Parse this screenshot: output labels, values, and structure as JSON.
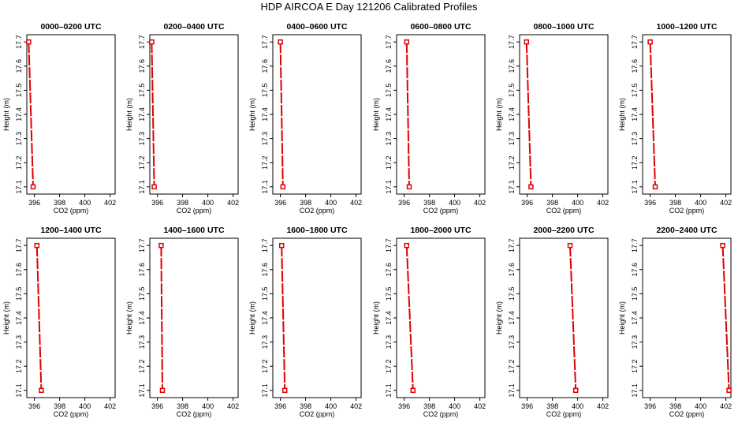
{
  "title": "HDP AIRCOA E  Day 121206  Calibrated Profiles",
  "colors": {
    "profile_line": "#e00000",
    "frame": "#000000"
  },
  "chart_data": [
    {
      "type": "line",
      "title": "0000–0200 UTC",
      "xlabel": "CO2 (ppm)",
      "ylabel": "Height (m)",
      "xlim": [
        395.4,
        402.4
      ],
      "ylim": [
        17.07,
        17.73
      ],
      "xticks": [
        "396",
        "398",
        "400",
        "402"
      ],
      "yticks": [
        "17.1",
        "17.2",
        "17.3",
        "17.4",
        "17.5",
        "17.6",
        "17.7"
      ],
      "grid": false,
      "x": [
        395.55,
        395.9
      ],
      "y": [
        17.7,
        17.1
      ]
    },
    {
      "type": "line",
      "title": "0200–0400 UTC",
      "xlabel": "CO2 (ppm)",
      "ylabel": "Height (m)",
      "xlim": [
        395.4,
        402.4
      ],
      "ylim": [
        17.07,
        17.73
      ],
      "xticks": [
        "396",
        "398",
        "400",
        "402"
      ],
      "yticks": [
        "17.1",
        "17.2",
        "17.3",
        "17.4",
        "17.5",
        "17.6",
        "17.7"
      ],
      "grid": false,
      "x": [
        395.55,
        395.75
      ],
      "y": [
        17.7,
        17.1
      ]
    },
    {
      "type": "line",
      "title": "0400–0600 UTC",
      "xlabel": "CO2 (ppm)",
      "ylabel": "Height (m)",
      "xlim": [
        395.4,
        402.4
      ],
      "ylim": [
        17.07,
        17.73
      ],
      "xticks": [
        "396",
        "398",
        "400",
        "402"
      ],
      "yticks": [
        "17.1",
        "17.2",
        "17.3",
        "17.4",
        "17.5",
        "17.6",
        "17.7"
      ],
      "grid": false,
      "x": [
        396.0,
        396.2
      ],
      "y": [
        17.7,
        17.1
      ]
    },
    {
      "type": "line",
      "title": "0600–0800 UTC",
      "xlabel": "CO2 (ppm)",
      "ylabel": "Height (m)",
      "xlim": [
        395.4,
        402.4
      ],
      "ylim": [
        17.07,
        17.73
      ],
      "xticks": [
        "396",
        "398",
        "400",
        "402"
      ],
      "yticks": [
        "17.1",
        "17.2",
        "17.3",
        "17.4",
        "17.5",
        "17.6",
        "17.7"
      ],
      "grid": false,
      "x": [
        396.2,
        396.4
      ],
      "y": [
        17.7,
        17.1
      ]
    },
    {
      "type": "line",
      "title": "0800–1000 UTC",
      "xlabel": "CO2 (ppm)",
      "ylabel": "Height (m)",
      "xlim": [
        395.4,
        402.4
      ],
      "ylim": [
        17.07,
        17.73
      ],
      "xticks": [
        "396",
        "398",
        "400",
        "402"
      ],
      "yticks": [
        "17.1",
        "17.2",
        "17.3",
        "17.4",
        "17.5",
        "17.6",
        "17.7"
      ],
      "grid": false,
      "x": [
        395.95,
        396.3
      ],
      "y": [
        17.7,
        17.1
      ]
    },
    {
      "type": "line",
      "title": "1000–1200 UTC",
      "xlabel": "CO2 (ppm)",
      "ylabel": "Height (m)",
      "xlim": [
        395.4,
        402.4
      ],
      "ylim": [
        17.07,
        17.73
      ],
      "xticks": [
        "396",
        "398",
        "400",
        "402"
      ],
      "yticks": [
        "17.1",
        "17.2",
        "17.3",
        "17.4",
        "17.5",
        "17.6",
        "17.7"
      ],
      "grid": false,
      "x": [
        396.0,
        396.4
      ],
      "y": [
        17.7,
        17.1
      ]
    },
    {
      "type": "line",
      "title": "1200–1400 UTC",
      "xlabel": "CO2 (ppm)",
      "ylabel": "Height (m)",
      "xlim": [
        395.4,
        402.4
      ],
      "ylim": [
        17.07,
        17.73
      ],
      "xticks": [
        "396",
        "398",
        "400",
        "402"
      ],
      "yticks": [
        "17.1",
        "17.2",
        "17.3",
        "17.4",
        "17.5",
        "17.6",
        "17.7"
      ],
      "grid": false,
      "x": [
        396.2,
        396.55
      ],
      "y": [
        17.7,
        17.1
      ]
    },
    {
      "type": "line",
      "title": "1400–1600 UTC",
      "xlabel": "CO2 (ppm)",
      "ylabel": "Height (m)",
      "xlim": [
        395.4,
        402.4
      ],
      "ylim": [
        17.07,
        17.73
      ],
      "xticks": [
        "396",
        "398",
        "400",
        "402"
      ],
      "yticks": [
        "17.1",
        "17.2",
        "17.3",
        "17.4",
        "17.5",
        "17.6",
        "17.7"
      ],
      "grid": false,
      "x": [
        396.3,
        396.4
      ],
      "y": [
        17.7,
        17.1
      ]
    },
    {
      "type": "line",
      "title": "1600–1800 UTC",
      "xlabel": "CO2 (ppm)",
      "ylabel": "Height (m)",
      "xlim": [
        395.4,
        402.4
      ],
      "ylim": [
        17.07,
        17.73
      ],
      "xticks": [
        "396",
        "398",
        "400",
        "402"
      ],
      "yticks": [
        "17.1",
        "17.2",
        "17.3",
        "17.4",
        "17.5",
        "17.6",
        "17.7"
      ],
      "grid": false,
      "x": [
        396.1,
        396.35
      ],
      "y": [
        17.7,
        17.1
      ]
    },
    {
      "type": "line",
      "title": "1800–2000 UTC",
      "xlabel": "CO2 (ppm)",
      "ylabel": "Height (m)",
      "xlim": [
        395.4,
        402.4
      ],
      "ylim": [
        17.07,
        17.73
      ],
      "xticks": [
        "396",
        "398",
        "400",
        "402"
      ],
      "yticks": [
        "17.1",
        "17.2",
        "17.3",
        "17.4",
        "17.5",
        "17.6",
        "17.7"
      ],
      "grid": false,
      "x": [
        396.2,
        396.7
      ],
      "y": [
        17.7,
        17.1
      ]
    },
    {
      "type": "line",
      "title": "2000–2200 UTC",
      "xlabel": "CO2 (ppm)",
      "ylabel": "Height (m)",
      "xlim": [
        395.4,
        402.4
      ],
      "ylim": [
        17.07,
        17.73
      ],
      "xticks": [
        "396",
        "398",
        "400",
        "402"
      ],
      "yticks": [
        "17.1",
        "17.2",
        "17.3",
        "17.4",
        "17.5",
        "17.6",
        "17.7"
      ],
      "grid": false,
      "x": [
        399.4,
        399.85
      ],
      "y": [
        17.7,
        17.1
      ]
    },
    {
      "type": "line",
      "title": "2200–2400 UTC",
      "xlabel": "CO2 (ppm)",
      "ylabel": "Height (m)",
      "xlim": [
        395.4,
        402.4
      ],
      "ylim": [
        17.07,
        17.73
      ],
      "xticks": [
        "396",
        "398",
        "400",
        "402"
      ],
      "yticks": [
        "17.1",
        "17.2",
        "17.3",
        "17.4",
        "17.5",
        "17.6",
        "17.7"
      ],
      "grid": false,
      "x": [
        401.75,
        402.25
      ],
      "y": [
        17.7,
        17.1
      ]
    }
  ]
}
